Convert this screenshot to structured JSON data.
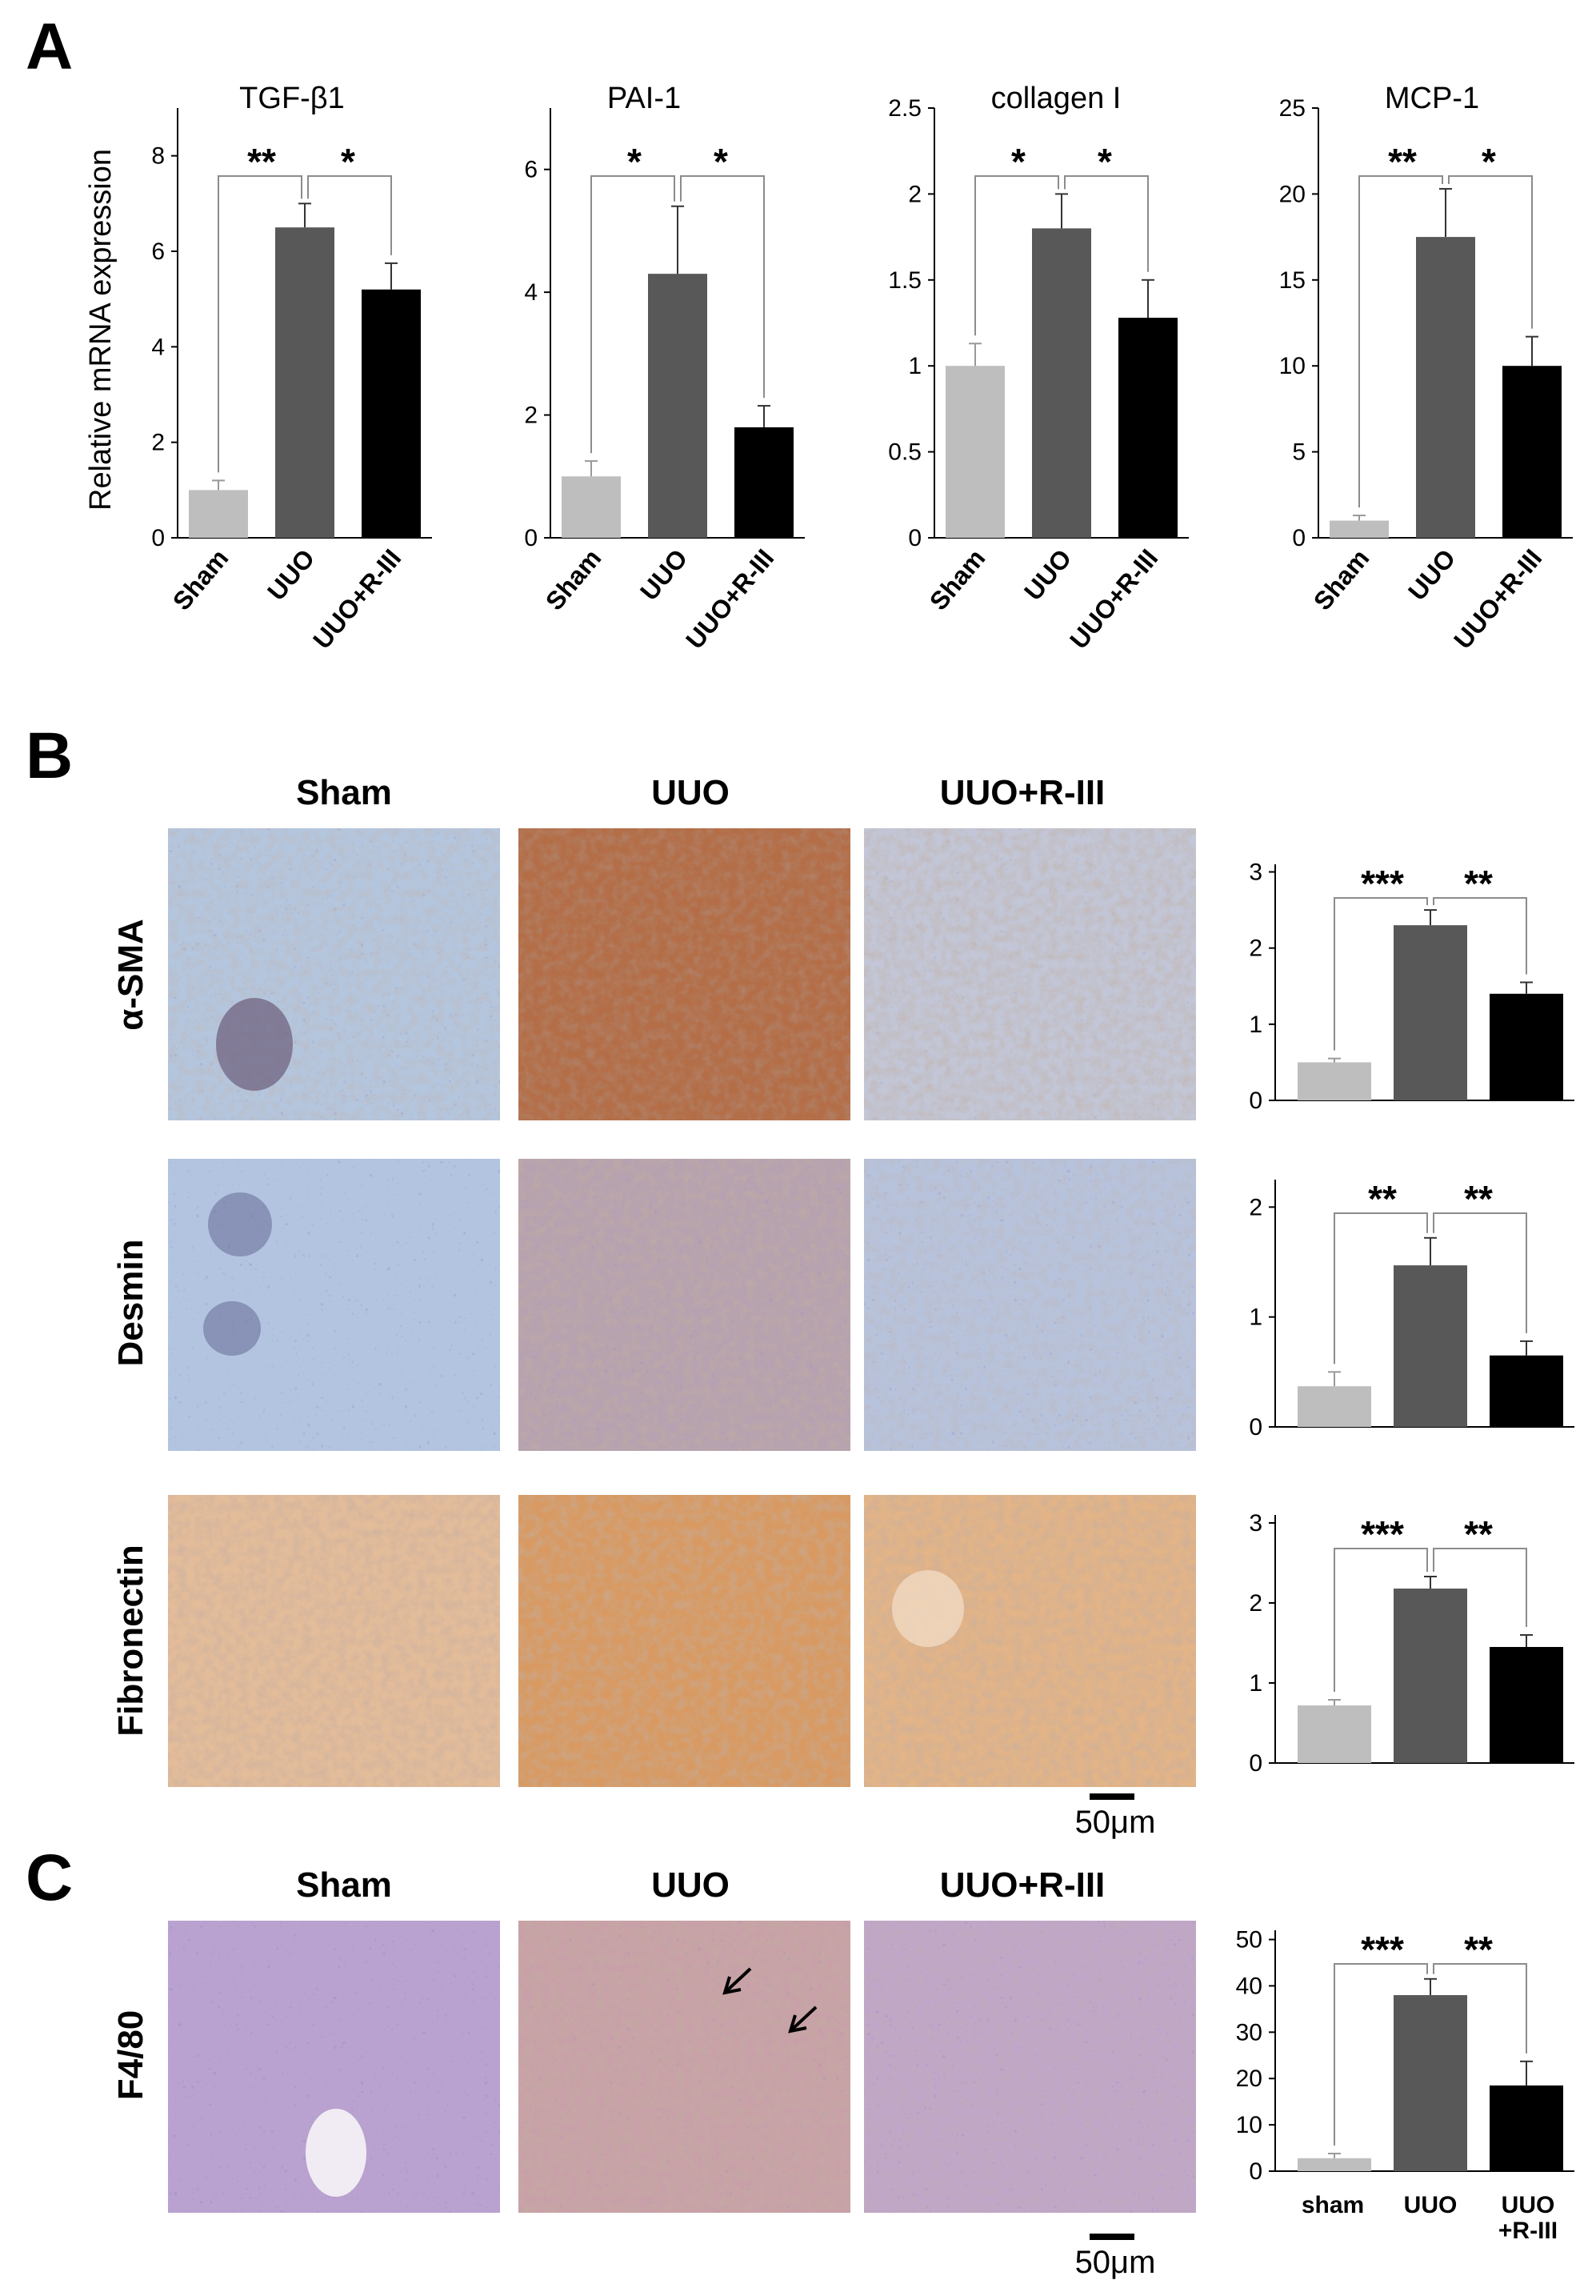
{
  "panels": {
    "a": "A",
    "b": "B",
    "c": "C"
  },
  "colors": {
    "sham": "#bebebe",
    "uuo": "#585858",
    "rIII": "#000000",
    "axis": "#000000",
    "bracket": "#8c8c8c"
  },
  "panelA": {
    "ylabel": "Relative mRNA expression",
    "categories": [
      "Sham",
      "UUO",
      "UUO+R-III"
    ]
  },
  "panelB": {
    "columns": [
      "Sham",
      "UUO",
      "UUO+R-III"
    ],
    "rows": [
      "α-SMA",
      "Desmin",
      "Fibronectin"
    ],
    "scale_bar": "50μm"
  },
  "panelC": {
    "columns": [
      "Sham",
      "UUO",
      "UUO+R-III"
    ],
    "row": "F4/80",
    "scale_bar": "50μm",
    "categories": [
      "sham",
      "UUO",
      "UUO",
      "+R-III"
    ]
  },
  "chart_data": [
    {
      "type": "bar",
      "title": "TGF-β1",
      "categories": [
        "Sham",
        "UUO",
        "UUO+R-III"
      ],
      "values": [
        1.0,
        6.5,
        5.2
      ],
      "errors": [
        0.2,
        0.5,
        0.55
      ],
      "ylim": [
        0,
        9
      ],
      "yticks": [
        "0",
        "2",
        "4",
        "6",
        "8"
      ],
      "ytick_values": [
        0,
        2,
        4,
        6,
        8
      ],
      "significance": [
        "**",
        "*"
      ]
    },
    {
      "type": "bar",
      "title": "PAI-1",
      "categories": [
        "Sham",
        "UUO",
        "UUO+R-III"
      ],
      "values": [
        1.0,
        4.3,
        1.8
      ],
      "errors": [
        0.25,
        1.1,
        0.35
      ],
      "ylim": [
        0,
        7
      ],
      "yticks": [
        "0",
        "2",
        "4",
        "6"
      ],
      "ytick_values": [
        0,
        2,
        4,
        6
      ],
      "significance": [
        "*",
        "*"
      ]
    },
    {
      "type": "bar",
      "title": "collagen I",
      "categories": [
        "Sham",
        "UUO",
        "UUO+R-III"
      ],
      "values": [
        1.0,
        1.8,
        1.28
      ],
      "errors": [
        0.13,
        0.2,
        0.22
      ],
      "ylim": [
        0,
        2.5
      ],
      "yticks": [
        "0",
        "0.5",
        "1",
        "1.5",
        "2",
        "2.5"
      ],
      "ytick_values": [
        0,
        0.5,
        1,
        1.5,
        2,
        2.5
      ],
      "significance": [
        "*",
        "*"
      ]
    },
    {
      "type": "bar",
      "title": "MCP-1",
      "categories": [
        "Sham",
        "UUO",
        "UUO+R-III"
      ],
      "values": [
        1.0,
        17.5,
        10.0
      ],
      "errors": [
        0.3,
        2.8,
        1.7
      ],
      "ylim": [
        0,
        25
      ],
      "yticks": [
        "0",
        "5",
        "10",
        "15",
        "20",
        "25"
      ],
      "ytick_values": [
        0,
        5,
        10,
        15,
        20,
        25
      ],
      "significance": [
        "**",
        "*"
      ]
    },
    {
      "type": "bar",
      "title": "",
      "categories": [
        "Sham",
        "UUO",
        "UUO+R-III"
      ],
      "values": [
        0.5,
        2.3,
        1.4
      ],
      "errors": [
        0.05,
        0.2,
        0.15
      ],
      "ylim": [
        0,
        3.1
      ],
      "yticks": [
        "0",
        "1",
        "2",
        "3"
      ],
      "ytick_values": [
        0,
        1,
        2,
        3
      ],
      "significance": [
        "***",
        "**"
      ]
    },
    {
      "type": "bar",
      "title": "",
      "categories": [
        "Sham",
        "UUO",
        "UUO+R-III"
      ],
      "values": [
        0.37,
        1.47,
        0.65
      ],
      "errors": [
        0.13,
        0.25,
        0.13
      ],
      "ylim": [
        0,
        2.25
      ],
      "yticks": [
        "0",
        "1",
        "2"
      ],
      "ytick_values": [
        0,
        1,
        2
      ],
      "significance": [
        "**",
        "**"
      ]
    },
    {
      "type": "bar",
      "title": "",
      "categories": [
        "Sham",
        "UUO",
        "UUO+R-III"
      ],
      "values": [
        0.72,
        2.18,
        1.45
      ],
      "errors": [
        0.07,
        0.15,
        0.15
      ],
      "ylim": [
        0,
        3.1
      ],
      "yticks": [
        "0",
        "1",
        "2",
        "3"
      ],
      "ytick_values": [
        0,
        1,
        2,
        3
      ],
      "significance": [
        "***",
        "**"
      ]
    },
    {
      "type": "bar",
      "title": "",
      "categories": [
        "sham",
        "UUO",
        "UUO+R-III"
      ],
      "values": [
        2.8,
        38.0,
        18.5
      ],
      "errors": [
        1.0,
        3.5,
        5.2
      ],
      "ylim": [
        0,
        52
      ],
      "yticks": [
        "0",
        "10",
        "20",
        "30",
        "40",
        "50"
      ],
      "ytick_values": [
        0,
        10,
        20,
        30,
        40,
        50
      ],
      "significance": [
        "***",
        "**"
      ]
    }
  ]
}
